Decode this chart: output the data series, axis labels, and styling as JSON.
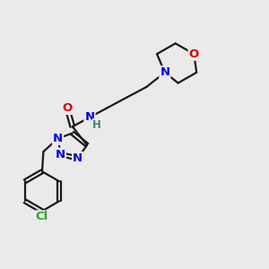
{
  "bg_color": "#eaeaea",
  "bond_color": "#1a1a1a",
  "bond_width": 1.6,
  "dbo": 0.07,
  "atom_colors": {
    "N": "#0000ee",
    "O": "#dd0000",
    "Cl": "#22aa22",
    "H": "#338888"
  },
  "font_size": 9.5,
  "fig_size": [
    3.0,
    3.0
  ],
  "dpi": 100,
  "xlim": [
    0,
    10
  ],
  "ylim": [
    0,
    10
  ]
}
